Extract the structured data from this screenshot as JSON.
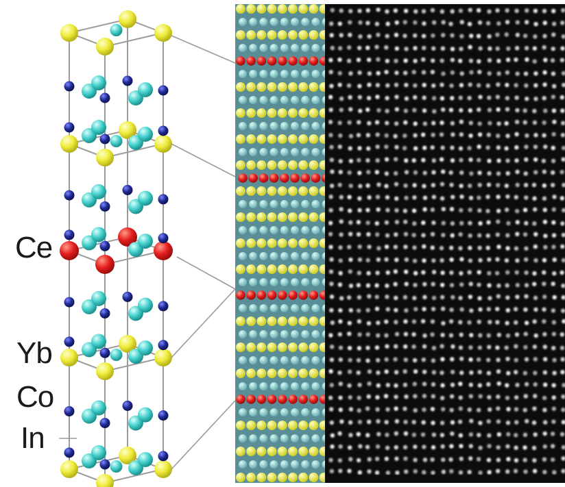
{
  "figure": {
    "labels": {
      "ce": "Ce",
      "yb": "Yb",
      "co": "Co",
      "in": "In"
    },
    "colors": {
      "ce": "#e01e1e",
      "yb": "#f0ee3c",
      "co": "#1f2a8f",
      "in": "#40d0cc",
      "bond": "#9a9a9a",
      "stem_background": "#0c0c0c"
    },
    "superlattice": {
      "ce_layer_every_rows": 8,
      "rows_total": 37
    }
  }
}
